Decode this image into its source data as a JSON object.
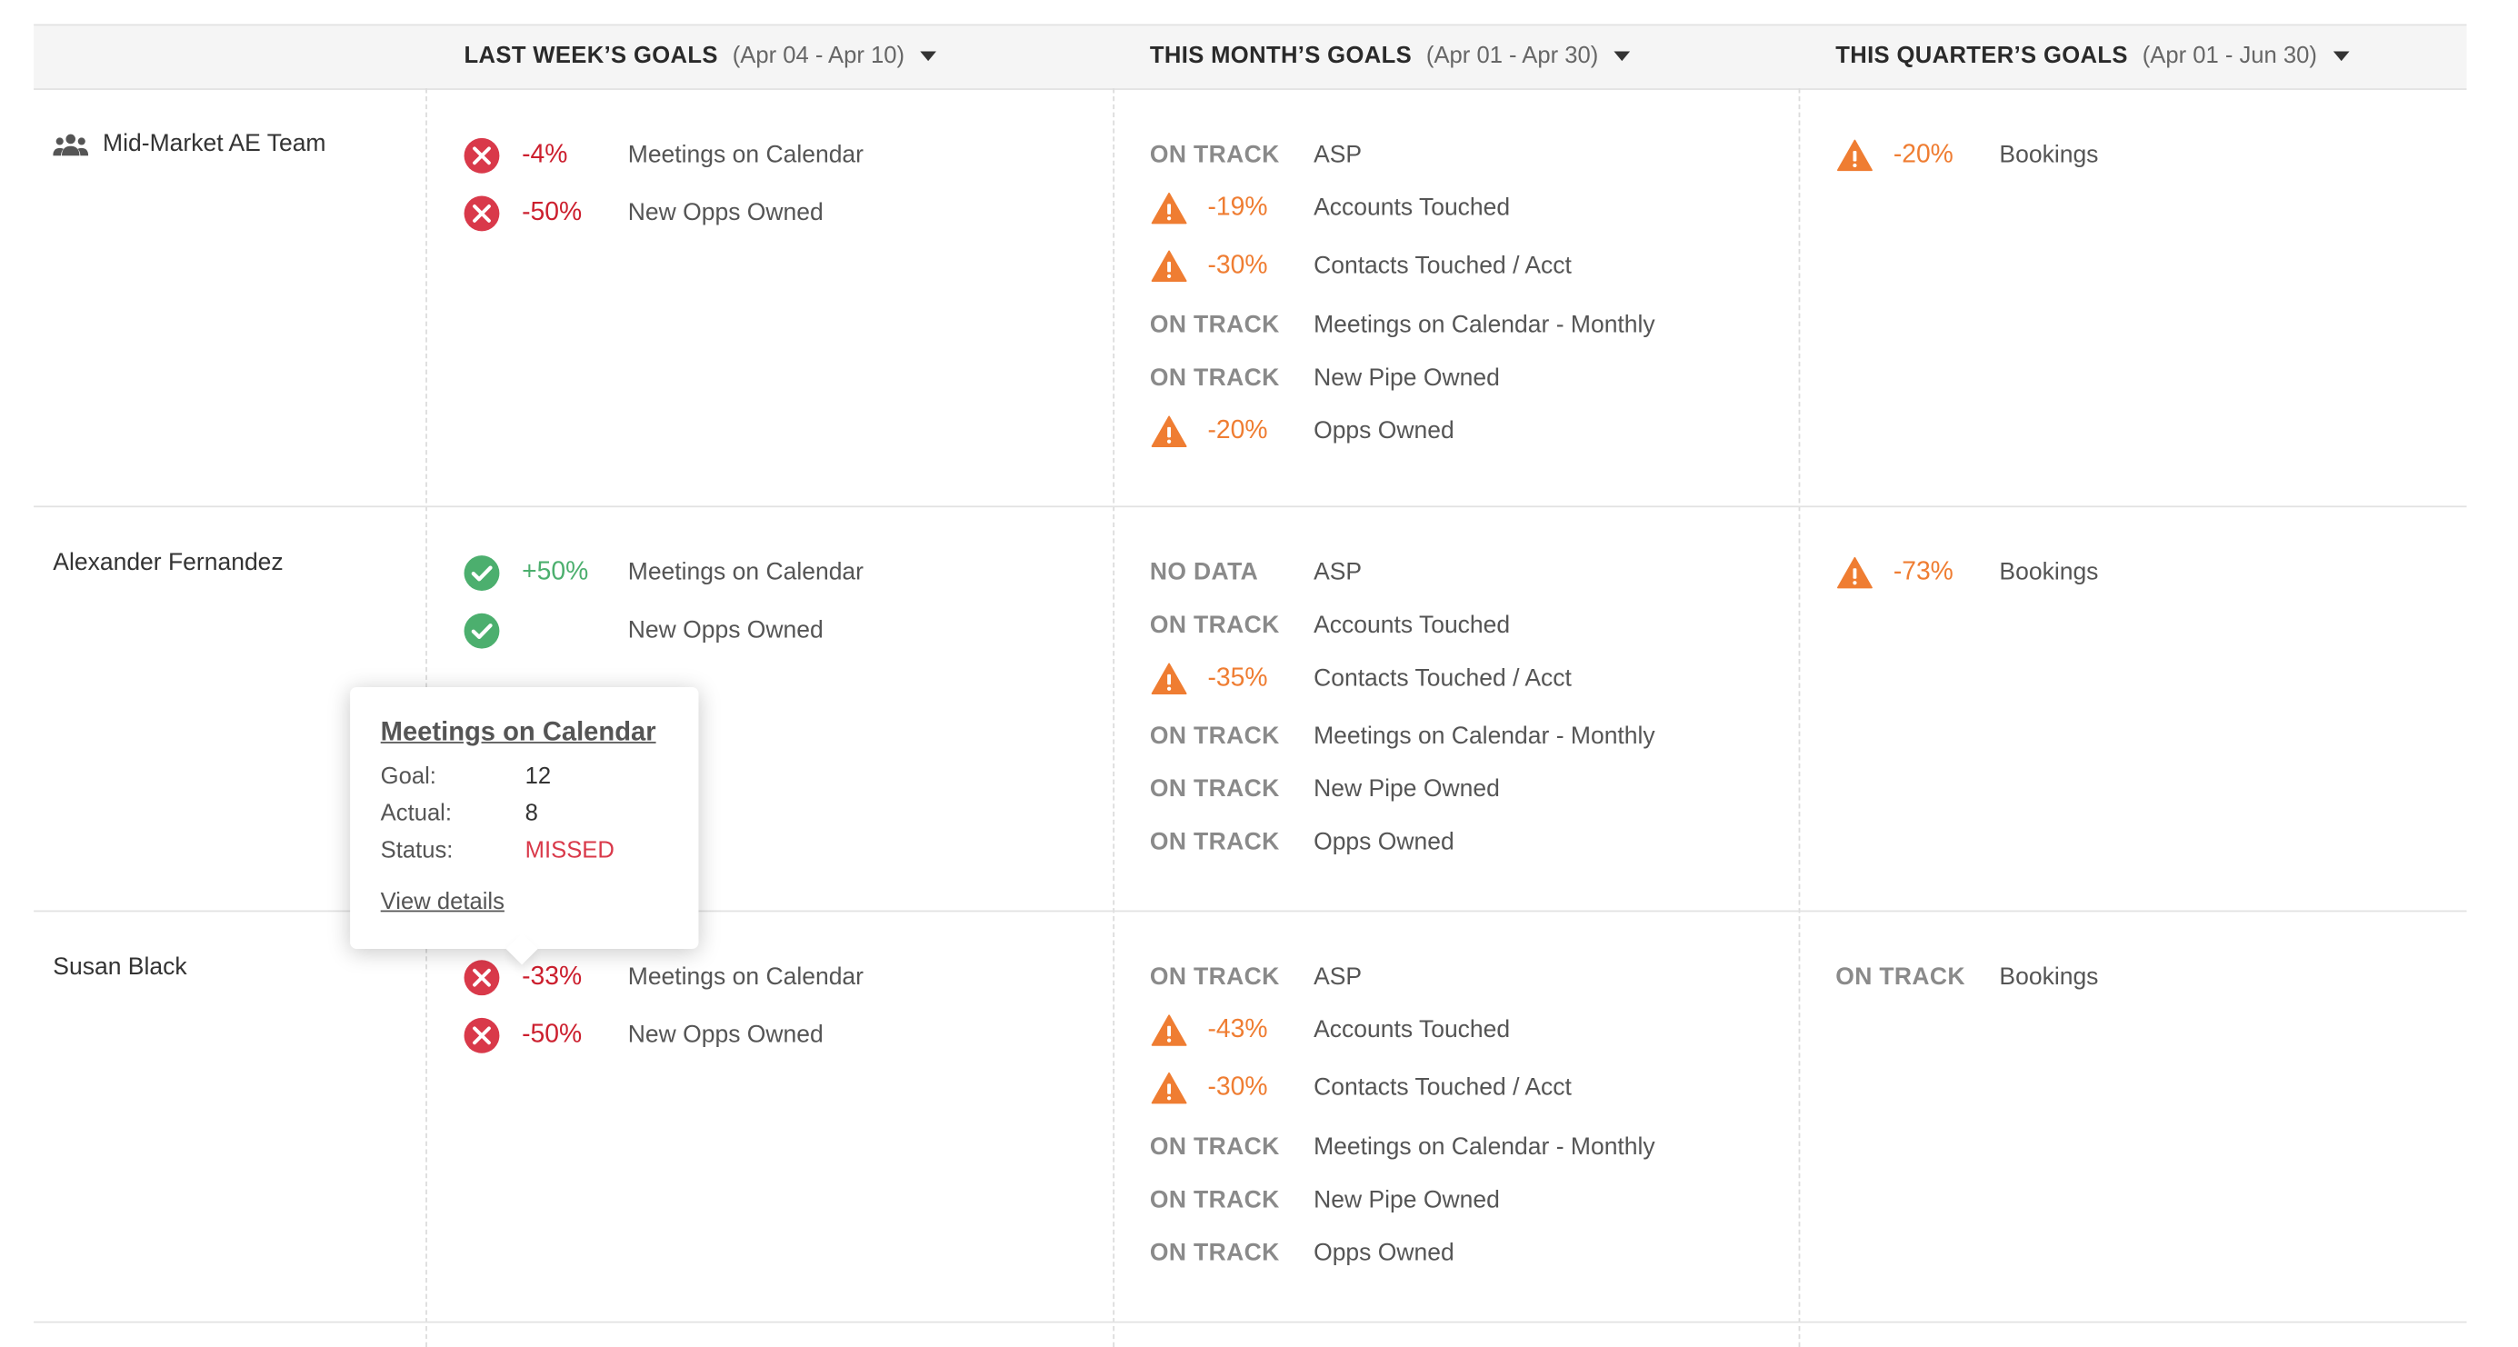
{
  "columns": [
    {
      "title": "LAST WEEK’S GOALS",
      "range": "(Apr 04 - Apr 10)"
    },
    {
      "title": "THIS MONTH’S GOALS",
      "range": "(Apr 01 - Apr 30)"
    },
    {
      "title": "THIS QUARTER’S GOALS",
      "range": "(Apr 01 - Jun 30)"
    }
  ],
  "rows": [
    {
      "label": "Mid-Market AE Team",
      "icon": "team-icon",
      "week": [
        {
          "status": "missed",
          "value": "-4%",
          "name": "Meetings on Calendar"
        },
        {
          "status": "missed",
          "value": "-50%",
          "name": "New Opps Owned"
        }
      ],
      "month": [
        {
          "status": "on-track",
          "value": "ON TRACK",
          "name": "ASP"
        },
        {
          "status": "warning",
          "value": "-19%",
          "name": "Accounts Touched"
        },
        {
          "status": "warning",
          "value": "-30%",
          "name": "Contacts Touched / Acct"
        },
        {
          "status": "on-track",
          "value": "ON TRACK",
          "name": "Meetings on Calendar - Monthly"
        },
        {
          "status": "on-track",
          "value": "ON TRACK",
          "name": "New Pipe Owned"
        },
        {
          "status": "warning",
          "value": "-20%",
          "name": "Opps Owned"
        }
      ],
      "quarter": [
        {
          "status": "warning",
          "value": "-20%",
          "name": "Bookings"
        }
      ]
    },
    {
      "label": "Alexander Fernandez",
      "week": [
        {
          "status": "achieved",
          "value": "+50%",
          "name": "Meetings on Calendar"
        },
        {
          "status": "achieved",
          "value": "",
          "name": "New Opps Owned"
        }
      ],
      "month": [
        {
          "status": "no-data",
          "value": "NO DATA",
          "name": "ASP"
        },
        {
          "status": "on-track",
          "value": "ON TRACK",
          "name": "Accounts Touched"
        },
        {
          "status": "warning",
          "value": "-35%",
          "name": "Contacts Touched / Acct"
        },
        {
          "status": "on-track",
          "value": "ON TRACK",
          "name": "Meetings on Calendar - Monthly"
        },
        {
          "status": "on-track",
          "value": "ON TRACK",
          "name": "New Pipe Owned"
        },
        {
          "status": "on-track",
          "value": "ON TRACK",
          "name": "Opps Owned"
        }
      ],
      "quarter": [
        {
          "status": "warning",
          "value": "-73%",
          "name": "Bookings"
        }
      ]
    },
    {
      "label": "Susan Black",
      "week": [
        {
          "status": "missed",
          "value": "-33%",
          "name": "Meetings on Calendar"
        },
        {
          "status": "missed",
          "value": "-50%",
          "name": "New Opps Owned"
        }
      ],
      "month": [
        {
          "status": "on-track",
          "value": "ON TRACK",
          "name": "ASP"
        },
        {
          "status": "warning",
          "value": "-43%",
          "name": "Accounts Touched"
        },
        {
          "status": "warning",
          "value": "-30%",
          "name": "Contacts Touched / Acct"
        },
        {
          "status": "on-track",
          "value": "ON TRACK",
          "name": "Meetings on Calendar - Monthly"
        },
        {
          "status": "on-track",
          "value": "ON TRACK",
          "name": "New Pipe Owned"
        },
        {
          "status": "on-track",
          "value": "ON TRACK",
          "name": "Opps Owned"
        }
      ],
      "quarter": [
        {
          "status": "on-track",
          "value": "ON TRACK",
          "name": "Bookings"
        }
      ]
    }
  ],
  "tooltip": {
    "title": "Meetings on Calendar",
    "goal_label": "Goal:",
    "goal_value": "12",
    "actual_label": "Actual:",
    "actual_value": "8",
    "status_label": "Status:",
    "status_value": "MISSED",
    "link": "View details"
  },
  "colors": {
    "missed": "#d9394a",
    "achieved": "#4caf6e",
    "warning": "#ef7d32",
    "status_text": "#8a8a8a"
  }
}
